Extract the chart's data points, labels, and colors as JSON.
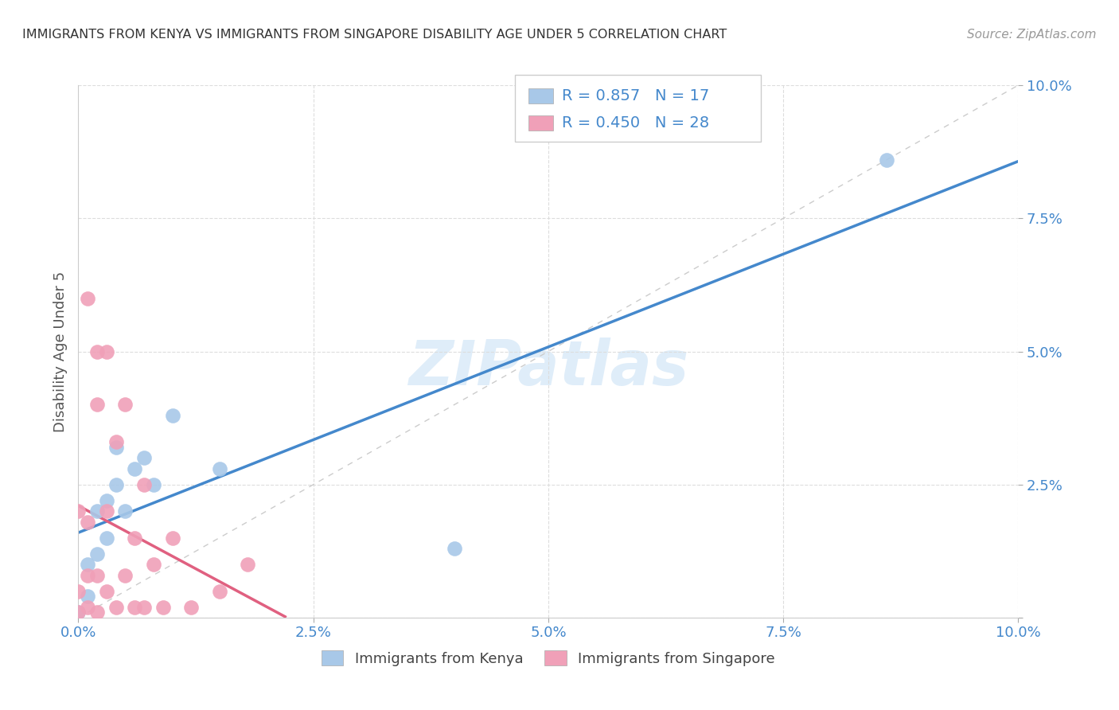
{
  "title": "IMMIGRANTS FROM KENYA VS IMMIGRANTS FROM SINGAPORE DISABILITY AGE UNDER 5 CORRELATION CHART",
  "source": "Source: ZipAtlas.com",
  "ylabel": "Disability Age Under 5",
  "xlim": [
    0.0,
    0.1
  ],
  "ylim": [
    0.0,
    0.1
  ],
  "xtick_vals": [
    0.0,
    0.025,
    0.05,
    0.075,
    0.1
  ],
  "xtick_labels": [
    "0.0%",
    "2.5%",
    "5.0%",
    "7.5%",
    "10.0%"
  ],
  "ytick_vals": [
    0.0,
    0.025,
    0.05,
    0.075,
    0.1
  ],
  "ytick_labels": [
    "",
    "2.5%",
    "5.0%",
    "7.5%",
    "10.0%"
  ],
  "kenya_color": "#a8c8e8",
  "singapore_color": "#f0a0b8",
  "kenya_line_color": "#4488cc",
  "singapore_line_color": "#e06080",
  "diagonal_color": "#cccccc",
  "kenya_R": 0.857,
  "kenya_N": 17,
  "singapore_R": 0.45,
  "singapore_N": 28,
  "kenya_scatter_x": [
    0.0,
    0.001,
    0.001,
    0.002,
    0.002,
    0.003,
    0.003,
    0.004,
    0.004,
    0.005,
    0.006,
    0.007,
    0.008,
    0.01,
    0.015,
    0.04,
    0.086
  ],
  "kenya_scatter_y": [
    0.001,
    0.004,
    0.01,
    0.012,
    0.02,
    0.015,
    0.022,
    0.025,
    0.032,
    0.02,
    0.028,
    0.03,
    0.025,
    0.038,
    0.028,
    0.013,
    0.086
  ],
  "singapore_scatter_x": [
    0.0,
    0.0,
    0.0,
    0.001,
    0.001,
    0.001,
    0.001,
    0.002,
    0.002,
    0.002,
    0.002,
    0.003,
    0.003,
    0.003,
    0.004,
    0.004,
    0.005,
    0.005,
    0.006,
    0.006,
    0.007,
    0.007,
    0.008,
    0.009,
    0.01,
    0.012,
    0.015,
    0.018
  ],
  "singapore_scatter_y": [
    0.001,
    0.005,
    0.02,
    0.002,
    0.008,
    0.018,
    0.06,
    0.001,
    0.008,
    0.04,
    0.05,
    0.005,
    0.02,
    0.05,
    0.002,
    0.033,
    0.008,
    0.04,
    0.002,
    0.015,
    0.002,
    0.025,
    0.01,
    0.002,
    0.015,
    0.002,
    0.005,
    0.01
  ],
  "watermark": "ZIPatlas",
  "tick_color": "#4488cc",
  "legend_text_color": "#4488cc",
  "title_color": "#333333",
  "source_color": "#999999"
}
